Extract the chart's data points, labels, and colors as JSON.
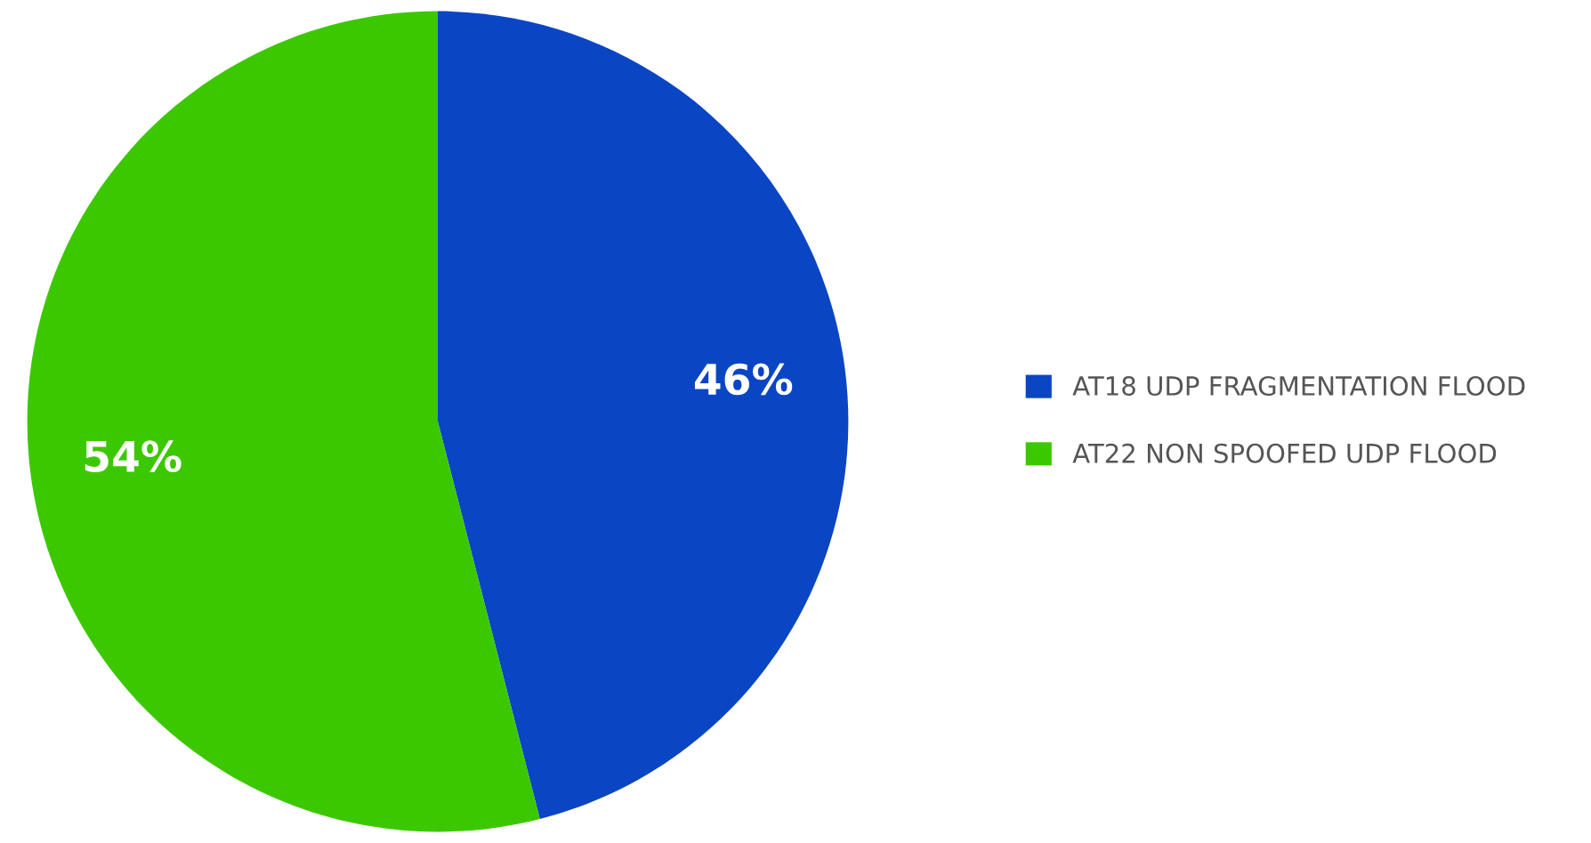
{
  "chart_data": {
    "type": "pie",
    "categories": [
      "AT18 UDP FRAGMENTATION FLOOD",
      "AT22 NON SPOOFED UDP FLOOD"
    ],
    "values": [
      46,
      54
    ],
    "colors": [
      "#0a45c4",
      "#3cc800"
    ],
    "value_labels": [
      "46%",
      "54%"
    ],
    "legend": "right"
  }
}
